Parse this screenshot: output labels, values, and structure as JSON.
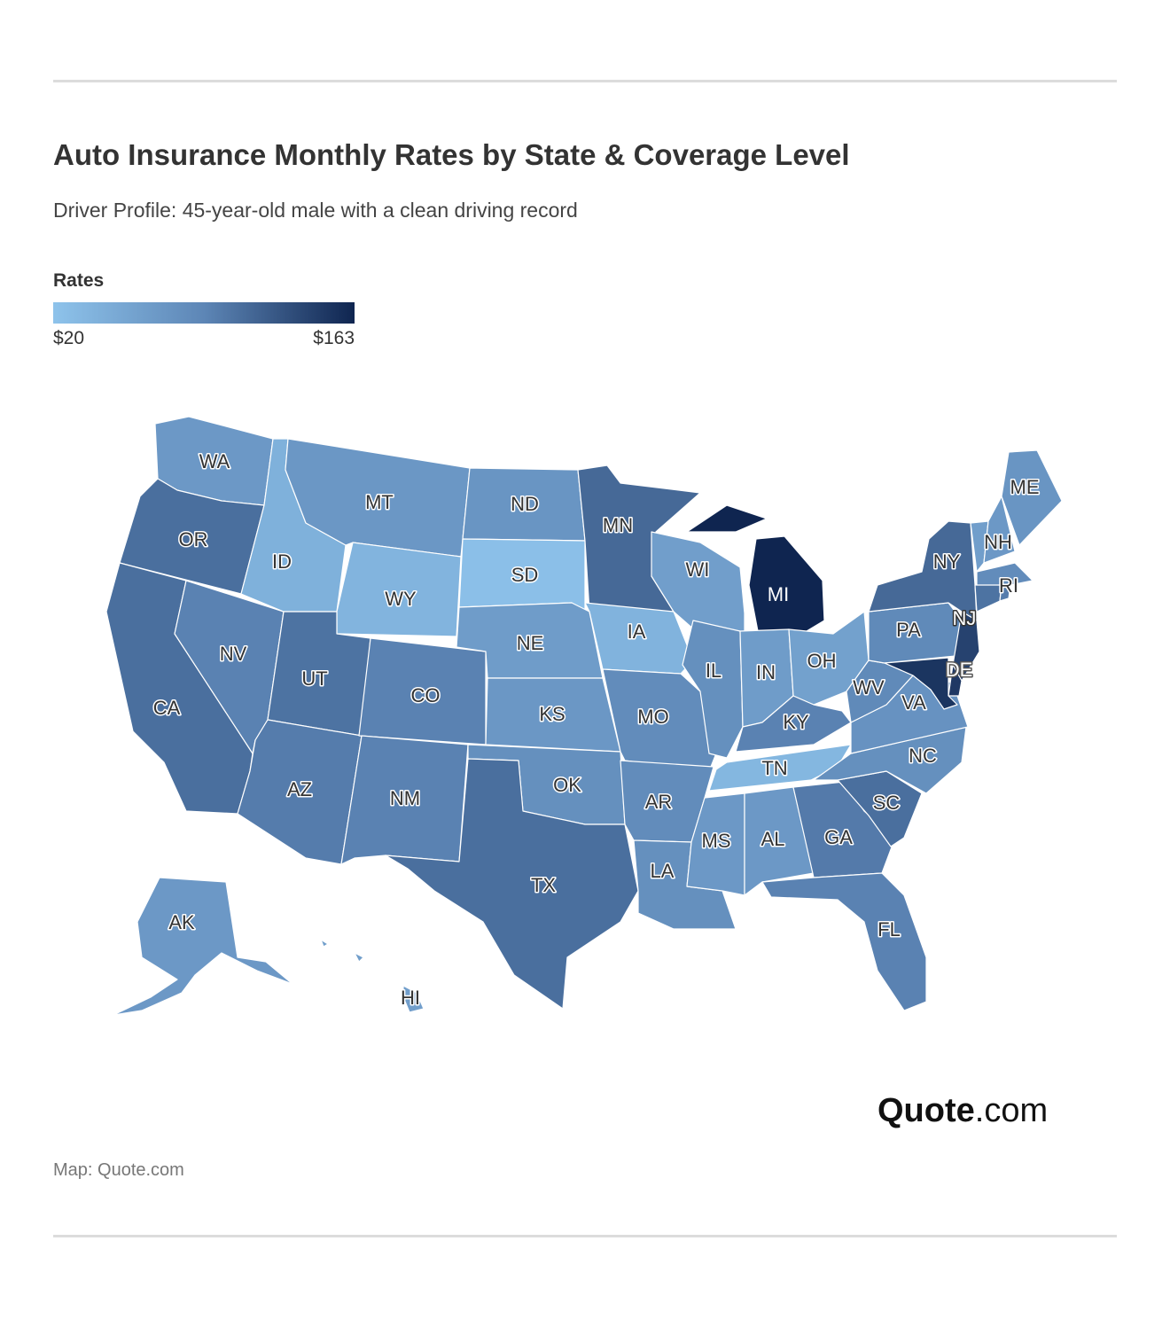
{
  "header": {
    "title": "Auto Insurance Monthly Rates by State & Coverage Level",
    "subtitle": "Driver Profile: 45-year-old male with a clean driving record"
  },
  "legend": {
    "title": "Rates",
    "min_label": "$20",
    "max_label": "$163",
    "min_value": 20,
    "max_value": 163,
    "color_low": "#8ec3eb",
    "color_mid": "#5d86b6",
    "color_high": "#0f2550"
  },
  "map": {
    "states": [
      {
        "code": "WA",
        "tone": 0.35
      },
      {
        "code": "OR",
        "tone": 0.62
      },
      {
        "code": "CA",
        "tone": 0.62
      },
      {
        "code": "NV",
        "tone": 0.52
      },
      {
        "code": "ID",
        "tone": 0.15
      },
      {
        "code": "MT",
        "tone": 0.36
      },
      {
        "code": "WY",
        "tone": 0.12
      },
      {
        "code": "UT",
        "tone": 0.6
      },
      {
        "code": "AZ",
        "tone": 0.55
      },
      {
        "code": "CO",
        "tone": 0.52
      },
      {
        "code": "NM",
        "tone": 0.52
      },
      {
        "code": "ND",
        "tone": 0.38
      },
      {
        "code": "SD",
        "tone": 0.03
      },
      {
        "code": "NE",
        "tone": 0.32
      },
      {
        "code": "KS",
        "tone": 0.36
      },
      {
        "code": "OK",
        "tone": 0.42
      },
      {
        "code": "TX",
        "tone": 0.62
      },
      {
        "code": "MN",
        "tone": 0.65
      },
      {
        "code": "IA",
        "tone": 0.13
      },
      {
        "code": "MO",
        "tone": 0.45
      },
      {
        "code": "AR",
        "tone": 0.45
      },
      {
        "code": "LA",
        "tone": 0.42
      },
      {
        "code": "WI",
        "tone": 0.3
      },
      {
        "code": "IL",
        "tone": 0.42
      },
      {
        "code": "MI",
        "tone": 1.0
      },
      {
        "code": "IN",
        "tone": 0.32
      },
      {
        "code": "OH",
        "tone": 0.28
      },
      {
        "code": "KY",
        "tone": 0.52
      },
      {
        "code": "TN",
        "tone": 0.1
      },
      {
        "code": "MS",
        "tone": 0.35
      },
      {
        "code": "AL",
        "tone": 0.35
      },
      {
        "code": "GA",
        "tone": 0.56
      },
      {
        "code": "FL",
        "tone": 0.52
      },
      {
        "code": "SC",
        "tone": 0.62
      },
      {
        "code": "NC",
        "tone": 0.42
      },
      {
        "code": "VA",
        "tone": 0.4
      },
      {
        "code": "WV",
        "tone": 0.47
      },
      {
        "code": "PA",
        "tone": 0.47
      },
      {
        "code": "NY",
        "tone": 0.65
      },
      {
        "code": "NJ",
        "tone": 0.85
      },
      {
        "code": "DE",
        "tone": 0.9
      },
      {
        "code": "MD",
        "tone": 0.92
      },
      {
        "code": "VT",
        "tone": 0.3
      },
      {
        "code": "NH",
        "tone": 0.35
      },
      {
        "code": "ME",
        "tone": 0.38
      },
      {
        "code": "MA",
        "tone": 0.45
      },
      {
        "code": "CT",
        "tone": 0.6
      },
      {
        "code": "RI",
        "tone": 0.55
      },
      {
        "code": "AK",
        "tone": 0.35
      },
      {
        "code": "HI",
        "tone": 0.3
      }
    ]
  },
  "brand": {
    "logo_bold": "Quote",
    "logo_suffix": ".com",
    "source": "Map: Quote.com"
  }
}
